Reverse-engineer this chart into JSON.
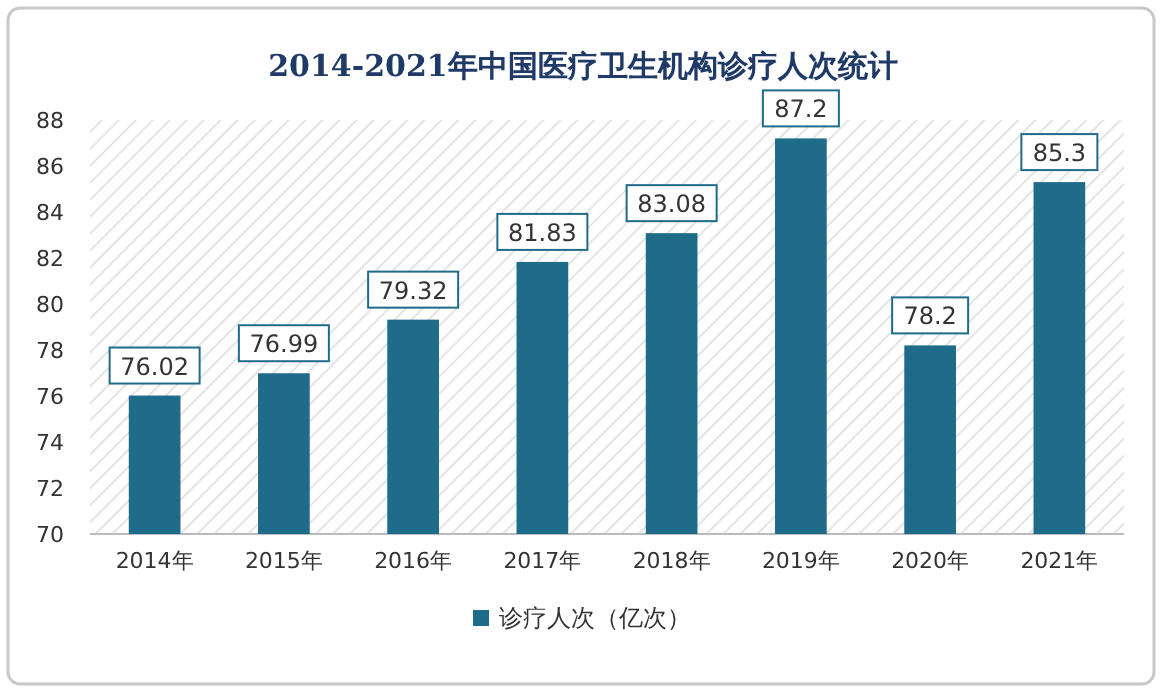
{
  "chart_data": {
    "type": "bar",
    "title": "2014-2021年中国医疗卫生机构诊疗人次统计",
    "categories": [
      "2014年",
      "2015年",
      "2016年",
      "2017年",
      "2018年",
      "2019年",
      "2020年",
      "2021年"
    ],
    "series": [
      {
        "name": "诊疗人次（亿次）",
        "color": "#1f6b8a",
        "values": [
          76.02,
          76.99,
          79.32,
          81.83,
          83.08,
          87.2,
          78.2,
          85.3
        ]
      }
    ],
    "ylim": [
      70,
      88
    ],
    "yticks": [
      70,
      72,
      74,
      76,
      78,
      80,
      82,
      84,
      86,
      88
    ],
    "data_labels": true,
    "legend": "bottom"
  }
}
